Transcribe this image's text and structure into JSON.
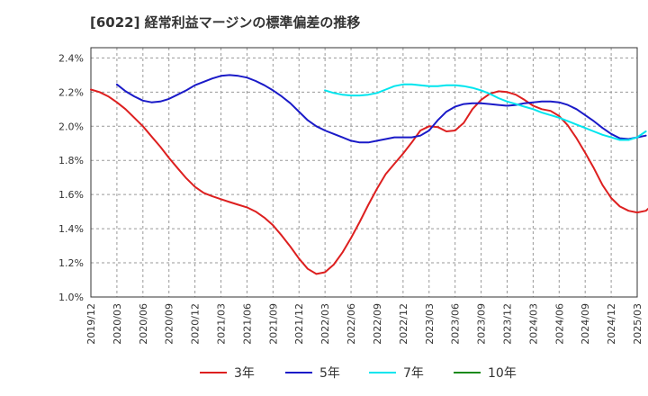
{
  "chart_data": {
    "type": "line",
    "title": "[6022]  経常利益マージンの標準偏差の推移",
    "xlabel": "",
    "ylabel": "",
    "x_ticks": [
      "2019/12",
      "2020/03",
      "2020/06",
      "2020/09",
      "2020/12",
      "2021/03",
      "2021/06",
      "2021/09",
      "2021/12",
      "2022/03",
      "2022/06",
      "2022/09",
      "2022/12",
      "2023/03",
      "2023/06",
      "2023/09",
      "2023/12",
      "2024/03",
      "2024/06",
      "2024/09",
      "2024/12",
      "2025/03"
    ],
    "y_ticks": [
      "1.0%",
      "1.2%",
      "1.4%",
      "1.6%",
      "1.8%",
      "2.0%",
      "2.2%",
      "2.4%"
    ],
    "ylim": [
      1.0,
      2.46
    ],
    "grid": true,
    "legend_position": "bottom",
    "series": [
      {
        "name": "3年",
        "color": "#dd1f1f",
        "points": [
          [
            "2019/12",
            2.215
          ],
          [
            "2020/01",
            2.2
          ],
          [
            "2020/02",
            2.175
          ],
          [
            "2020/03",
            2.14
          ],
          [
            "2020/04",
            2.1
          ],
          [
            "2020/05",
            2.05
          ],
          [
            "2020/06",
            2.0
          ],
          [
            "2020/07",
            1.94
          ],
          [
            "2020/08",
            1.88
          ],
          [
            "2020/09",
            1.815
          ],
          [
            "2020/10",
            1.755
          ],
          [
            "2020/11",
            1.695
          ],
          [
            "2020/12",
            1.645
          ],
          [
            "2021/01",
            1.61
          ],
          [
            "2021/02",
            1.59
          ],
          [
            "2021/03",
            1.573
          ],
          [
            "2021/04",
            1.556
          ],
          [
            "2021/05",
            1.54
          ],
          [
            "2021/06",
            1.525
          ],
          [
            "2021/07",
            1.5
          ],
          [
            "2021/08",
            1.465
          ],
          [
            "2021/09",
            1.42
          ],
          [
            "2021/10",
            1.36
          ],
          [
            "2021/11",
            1.295
          ],
          [
            "2021/12",
            1.225
          ],
          [
            "2022/01",
            1.165
          ],
          [
            "2022/02",
            1.135
          ],
          [
            "2022/03",
            1.145
          ],
          [
            "2022/04",
            1.19
          ],
          [
            "2022/05",
            1.26
          ],
          [
            "2022/06",
            1.345
          ],
          [
            "2022/07",
            1.44
          ],
          [
            "2022/08",
            1.54
          ],
          [
            "2022/09",
            1.635
          ],
          [
            "2022/10",
            1.72
          ],
          [
            "2022/11",
            1.78
          ],
          [
            "2022/12",
            1.84
          ],
          [
            "2023/01",
            1.905
          ],
          [
            "2023/02",
            1.975
          ],
          [
            "2023/03",
            2.0
          ],
          [
            "2023/04",
            1.995
          ],
          [
            "2023/05",
            1.97
          ],
          [
            "2023/06",
            1.975
          ],
          [
            "2023/07",
            2.02
          ],
          [
            "2023/08",
            2.1
          ],
          [
            "2023/09",
            2.155
          ],
          [
            "2023/10",
            2.19
          ],
          [
            "2023/11",
            2.205
          ],
          [
            "2023/12",
            2.2
          ],
          [
            "2024/01",
            2.185
          ],
          [
            "2024/02",
            2.155
          ],
          [
            "2024/03",
            2.12
          ],
          [
            "2024/04",
            2.1
          ],
          [
            "2024/05",
            2.09
          ],
          [
            "2024/06",
            2.06
          ],
          [
            "2024/07",
            2.005
          ],
          [
            "2024/08",
            1.93
          ],
          [
            "2024/09",
            1.845
          ],
          [
            "2024/10",
            1.755
          ],
          [
            "2024/11",
            1.655
          ],
          [
            "2024/12",
            1.58
          ],
          [
            "2025/01",
            1.53
          ],
          [
            "2025/02",
            1.505
          ],
          [
            "2025/03",
            1.495
          ],
          [
            "2025/04",
            1.505
          ],
          [
            "2025/05",
            1.55
          ]
        ]
      },
      {
        "name": "5年",
        "color": "#1a1ac8",
        "points": [
          [
            "2020/03",
            2.245
          ],
          [
            "2020/04",
            2.205
          ],
          [
            "2020/05",
            2.175
          ],
          [
            "2020/06",
            2.15
          ],
          [
            "2020/07",
            2.14
          ],
          [
            "2020/08",
            2.145
          ],
          [
            "2020/09",
            2.16
          ],
          [
            "2020/10",
            2.185
          ],
          [
            "2020/11",
            2.21
          ],
          [
            "2020/12",
            2.24
          ],
          [
            "2021/01",
            2.26
          ],
          [
            "2021/02",
            2.28
          ],
          [
            "2021/03",
            2.295
          ],
          [
            "2021/04",
            2.3
          ],
          [
            "2021/05",
            2.295
          ],
          [
            "2021/06",
            2.285
          ],
          [
            "2021/07",
            2.265
          ],
          [
            "2021/08",
            2.24
          ],
          [
            "2021/09",
            2.21
          ],
          [
            "2021/10",
            2.175
          ],
          [
            "2021/11",
            2.135
          ],
          [
            "2021/12",
            2.085
          ],
          [
            "2022/01",
            2.035
          ],
          [
            "2022/02",
            2.0
          ],
          [
            "2022/03",
            1.975
          ],
          [
            "2022/04",
            1.955
          ],
          [
            "2022/05",
            1.935
          ],
          [
            "2022/06",
            1.915
          ],
          [
            "2022/07",
            1.905
          ],
          [
            "2022/08",
            1.905
          ],
          [
            "2022/09",
            1.915
          ],
          [
            "2022/10",
            1.925
          ],
          [
            "2022/11",
            1.935
          ],
          [
            "2022/12",
            1.935
          ],
          [
            "2023/01",
            1.935
          ],
          [
            "2023/02",
            1.945
          ],
          [
            "2023/03",
            1.975
          ],
          [
            "2023/04",
            2.035
          ],
          [
            "2023/05",
            2.085
          ],
          [
            "2023/06",
            2.115
          ],
          [
            "2023/07",
            2.13
          ],
          [
            "2023/08",
            2.135
          ],
          [
            "2023/09",
            2.135
          ],
          [
            "2023/10",
            2.13
          ],
          [
            "2023/11",
            2.125
          ],
          [
            "2023/12",
            2.12
          ],
          [
            "2024/01",
            2.125
          ],
          [
            "2024/02",
            2.135
          ],
          [
            "2024/03",
            2.14
          ],
          [
            "2024/04",
            2.145
          ],
          [
            "2024/05",
            2.145
          ],
          [
            "2024/06",
            2.14
          ],
          [
            "2024/07",
            2.125
          ],
          [
            "2024/08",
            2.1
          ],
          [
            "2024/09",
            2.065
          ],
          [
            "2024/10",
            2.03
          ],
          [
            "2024/11",
            1.99
          ],
          [
            "2024/12",
            1.955
          ],
          [
            "2025/01",
            1.93
          ],
          [
            "2025/02",
            1.925
          ],
          [
            "2025/03",
            1.935
          ],
          [
            "2025/04",
            1.945
          ]
        ]
      },
      {
        "name": "7年",
        "color": "#00e5ee",
        "points": [
          [
            "2022/03",
            2.21
          ],
          [
            "2022/04",
            2.195
          ],
          [
            "2022/05",
            2.185
          ],
          [
            "2022/06",
            2.18
          ],
          [
            "2022/07",
            2.18
          ],
          [
            "2022/08",
            2.185
          ],
          [
            "2022/09",
            2.195
          ],
          [
            "2022/10",
            2.215
          ],
          [
            "2022/11",
            2.235
          ],
          [
            "2022/12",
            2.245
          ],
          [
            "2023/01",
            2.245
          ],
          [
            "2023/02",
            2.24
          ],
          [
            "2023/03",
            2.235
          ],
          [
            "2023/04",
            2.235
          ],
          [
            "2023/05",
            2.24
          ],
          [
            "2023/06",
            2.24
          ],
          [
            "2023/07",
            2.235
          ],
          [
            "2023/08",
            2.225
          ],
          [
            "2023/09",
            2.21
          ],
          [
            "2023/10",
            2.19
          ],
          [
            "2023/11",
            2.165
          ],
          [
            "2023/12",
            2.145
          ],
          [
            "2024/01",
            2.13
          ],
          [
            "2024/02",
            2.115
          ],
          [
            "2024/03",
            2.1
          ],
          [
            "2024/04",
            2.08
          ],
          [
            "2024/05",
            2.065
          ],
          [
            "2024/06",
            2.05
          ],
          [
            "2024/07",
            2.03
          ],
          [
            "2024/08",
            2.01
          ],
          [
            "2024/09",
            1.99
          ],
          [
            "2024/10",
            1.97
          ],
          [
            "2024/11",
            1.95
          ],
          [
            "2024/12",
            1.935
          ],
          [
            "2025/01",
            1.92
          ],
          [
            "2025/02",
            1.92
          ],
          [
            "2025/03",
            1.935
          ],
          [
            "2025/04",
            1.97
          ]
        ]
      },
      {
        "name": "10年",
        "color": "#1a8a1a",
        "points": []
      }
    ]
  }
}
